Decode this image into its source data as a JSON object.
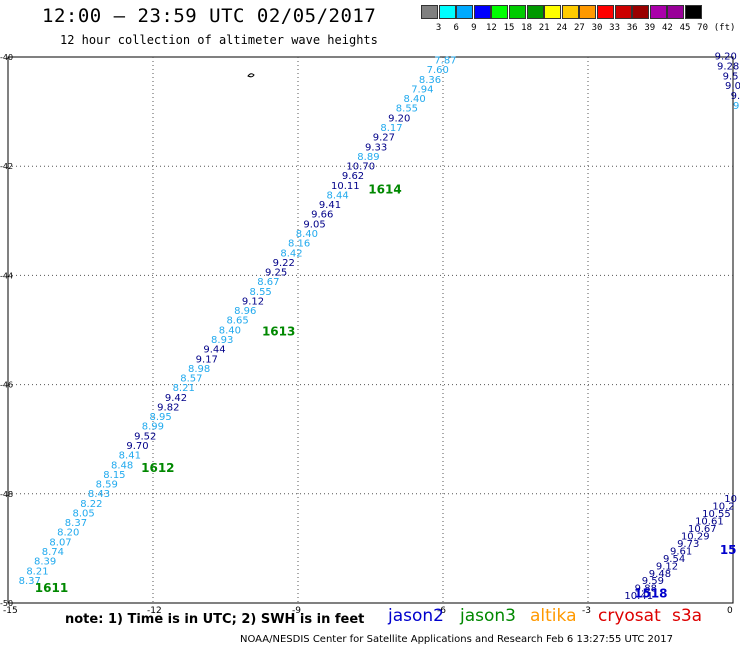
{
  "header": {
    "title": "12:00 – 23:59 UTC 02/05/2017",
    "subtitle": "12 hour collection of altimeter wave heights"
  },
  "colors": {
    "jason2": "#0000cc",
    "jason3": "#008800",
    "altika": "#ff9900",
    "cryosat": "#dd0000",
    "s3a": "#dd0000",
    "light_label": "#22aaee",
    "dark_label": "#000088"
  },
  "legend": {
    "unit": "(ft)",
    "thresholds": [
      "3",
      "6",
      "9",
      "12",
      "15",
      "18",
      "21",
      "24",
      "27",
      "30",
      "33",
      "36",
      "39",
      "42",
      "45",
      "70"
    ],
    "swatches": [
      "#808080",
      "#00ffff",
      "#00aaff",
      "#0000ff",
      "#00ff00",
      "#00cc00",
      "#009900",
      "#ffff00",
      "#ffcc00",
      "#ff9900",
      "#ff0000",
      "#cc0000",
      "#990000",
      "#aa00aa",
      "#990099",
      "#000000"
    ]
  },
  "note": "note: 1) Time is in UTC; 2) SWH is in feet",
  "satellites": [
    {
      "name": "jason2",
      "color": "#0000cc"
    },
    {
      "name": "jason3",
      "color": "#008800"
    },
    {
      "name": "altika",
      "color": "#ff9900"
    },
    {
      "name": "cryosat",
      "color": "#dd0000"
    },
    {
      "name": "s3a",
      "color": "#dd0000"
    }
  ],
  "footer": "NOAA/NESDIS Center for Satellite Applications and Research   Feb  6 13:27:55 UTC 2017",
  "map": {
    "lon_range": [
      -15,
      0
    ],
    "lat_range": [
      -50,
      -40
    ],
    "lon_ticks": [
      "-15",
      "-12",
      "-9",
      "-6",
      "-3",
      "0"
    ],
    "lat_ticks": [
      "-40",
      "-42",
      "-44",
      "-46",
      "-48",
      "-50"
    ],
    "passes": [
      {
        "id": "1611",
        "color": "#008800",
        "label_pos": [
          -14.1,
          -49.8
        ]
      },
      {
        "id": "1612",
        "color": "#008800",
        "label_pos": [
          -11.9,
          -47.6
        ]
      },
      {
        "id": "1613",
        "color": "#008800",
        "label_pos": [
          -9.4,
          -45.1
        ]
      },
      {
        "id": "1614",
        "color": "#008800",
        "label_pos": [
          -7.2,
          -42.5
        ]
      },
      {
        "id": "1518",
        "color": "#0000cc",
        "label_pos": [
          -1.7,
          -49.9
        ]
      },
      {
        "id": "15",
        "color": "#0000cc",
        "label_pos": [
          -0.1,
          -49.1
        ]
      }
    ],
    "track_jason3": [
      [
        "8.37",
        1
      ],
      [
        "8.21",
        1
      ],
      [
        "8.39",
        1
      ],
      [
        "8.74",
        1
      ],
      [
        "8.07",
        1
      ],
      [
        "8.20",
        1
      ],
      [
        "8.37",
        1
      ],
      [
        "8.05",
        1
      ],
      [
        "8.22",
        1
      ],
      [
        "8.43",
        1
      ],
      [
        "8.59",
        1
      ],
      [
        "8.15",
        1
      ],
      [
        "8.48",
        1
      ],
      [
        "8.41",
        1
      ],
      [
        "9.70",
        0
      ],
      [
        "9.52",
        0
      ],
      [
        "8.99",
        1
      ],
      [
        "8.95",
        1
      ],
      [
        "9.82",
        0
      ],
      [
        "9.42",
        0
      ],
      [
        "8.21",
        1
      ],
      [
        "8.57",
        1
      ],
      [
        "8.98",
        1
      ],
      [
        "9.17",
        0
      ],
      [
        "9.44",
        0
      ],
      [
        "8.93",
        1
      ],
      [
        "8.40",
        1
      ],
      [
        "8.65",
        1
      ],
      [
        "8.96",
        1
      ],
      [
        "9.12",
        0
      ],
      [
        "8.55",
        1
      ],
      [
        "8.67",
        1
      ],
      [
        "9.25",
        0
      ],
      [
        "9.22",
        0
      ],
      [
        "8.42",
        1
      ],
      [
        "8.16",
        1
      ],
      [
        "8.40",
        1
      ],
      [
        "9.05",
        0
      ],
      [
        "9.66",
        0
      ],
      [
        "9.41",
        0
      ],
      [
        "8.44",
        1
      ],
      [
        "10.11",
        0
      ],
      [
        "9.62",
        0
      ],
      [
        "10.70",
        0
      ],
      [
        "8.89",
        1
      ],
      [
        "9.33",
        0
      ],
      [
        "9.27",
        0
      ],
      [
        "8.17",
        1
      ],
      [
        "9.20",
        0
      ],
      [
        "8.55",
        1
      ],
      [
        "8.40",
        1
      ],
      [
        "7.94",
        1
      ],
      [
        "8.36",
        1
      ],
      [
        "7.60",
        1
      ],
      [
        "7.87",
        1
      ]
    ],
    "track_1518": [
      [
        "10.41",
        0
      ],
      [
        "9.88",
        0
      ],
      [
        "9.59",
        0
      ],
      [
        "9.48",
        0
      ],
      [
        "9.12",
        0
      ],
      [
        "9.54",
        0
      ],
      [
        "9.61",
        0
      ],
      [
        "9.73",
        0
      ],
      [
        "10.29",
        0
      ],
      [
        "10.67",
        0
      ],
      [
        "10.61",
        0
      ],
      [
        "10.55",
        0
      ],
      [
        "10.2",
        0
      ],
      [
        "10",
        0
      ]
    ],
    "track_edge": [
      [
        "9.20",
        0
      ],
      [
        "9.28",
        0
      ],
      [
        "9.5",
        0
      ],
      [
        "9.0",
        0
      ],
      [
        "9.",
        0
      ],
      [
        "9.",
        1
      ]
    ]
  }
}
